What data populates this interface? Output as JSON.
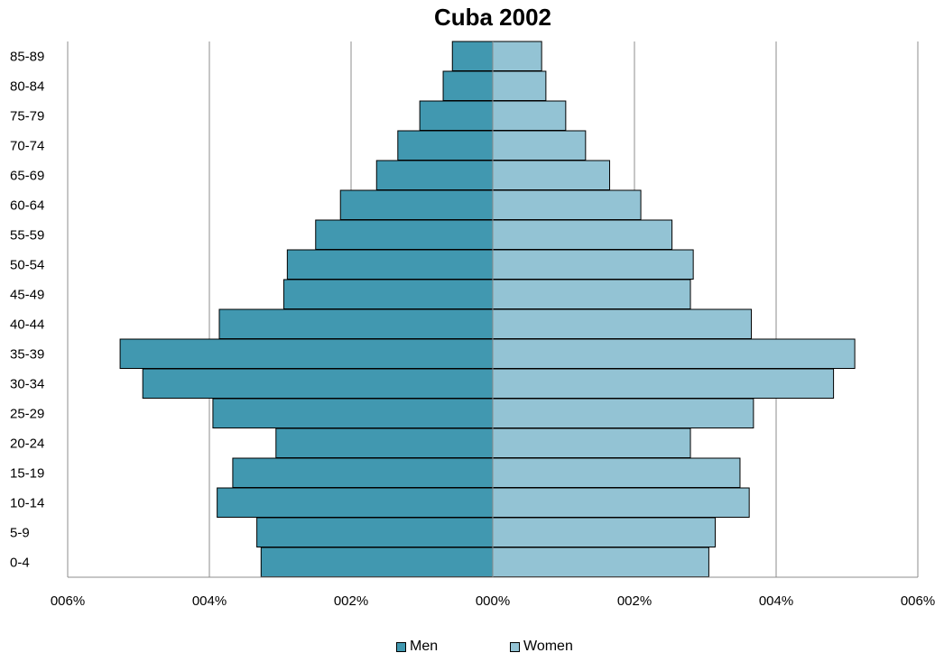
{
  "chart_data": {
    "type": "bar",
    "orientation": "horizontal-population-pyramid",
    "title": "Cuba 2002",
    "categories": [
      "0-4",
      "5-9",
      "10-14",
      "15-19",
      "20-24",
      "25-29",
      "30-34",
      "35-39",
      "40-44",
      "45-49",
      "50-54",
      "55-59",
      "60-64",
      "65-69",
      "70-74",
      "75-79",
      "80-84",
      "85-89"
    ],
    "series": [
      {
        "name": "Men",
        "color": "#4198b0",
        "values": [
          3.27,
          3.33,
          3.89,
          3.67,
          3.06,
          3.95,
          4.94,
          5.26,
          3.86,
          2.95,
          2.9,
          2.5,
          2.15,
          1.64,
          1.34,
          1.03,
          0.7,
          0.57
        ]
      },
      {
        "name": "Women",
        "color": "#93c3d4",
        "values": [
          3.05,
          3.14,
          3.62,
          3.49,
          2.79,
          3.68,
          4.81,
          5.11,
          3.65,
          2.79,
          2.83,
          2.53,
          2.09,
          1.65,
          1.31,
          1.03,
          0.75,
          0.69
        ]
      }
    ],
    "x_ticks": [
      "006%",
      "004%",
      "002%",
      "000%",
      "002%",
      "004%",
      "006%"
    ],
    "xlim": [
      -6,
      6
    ],
    "grid": true,
    "legend_position": "bottom"
  }
}
